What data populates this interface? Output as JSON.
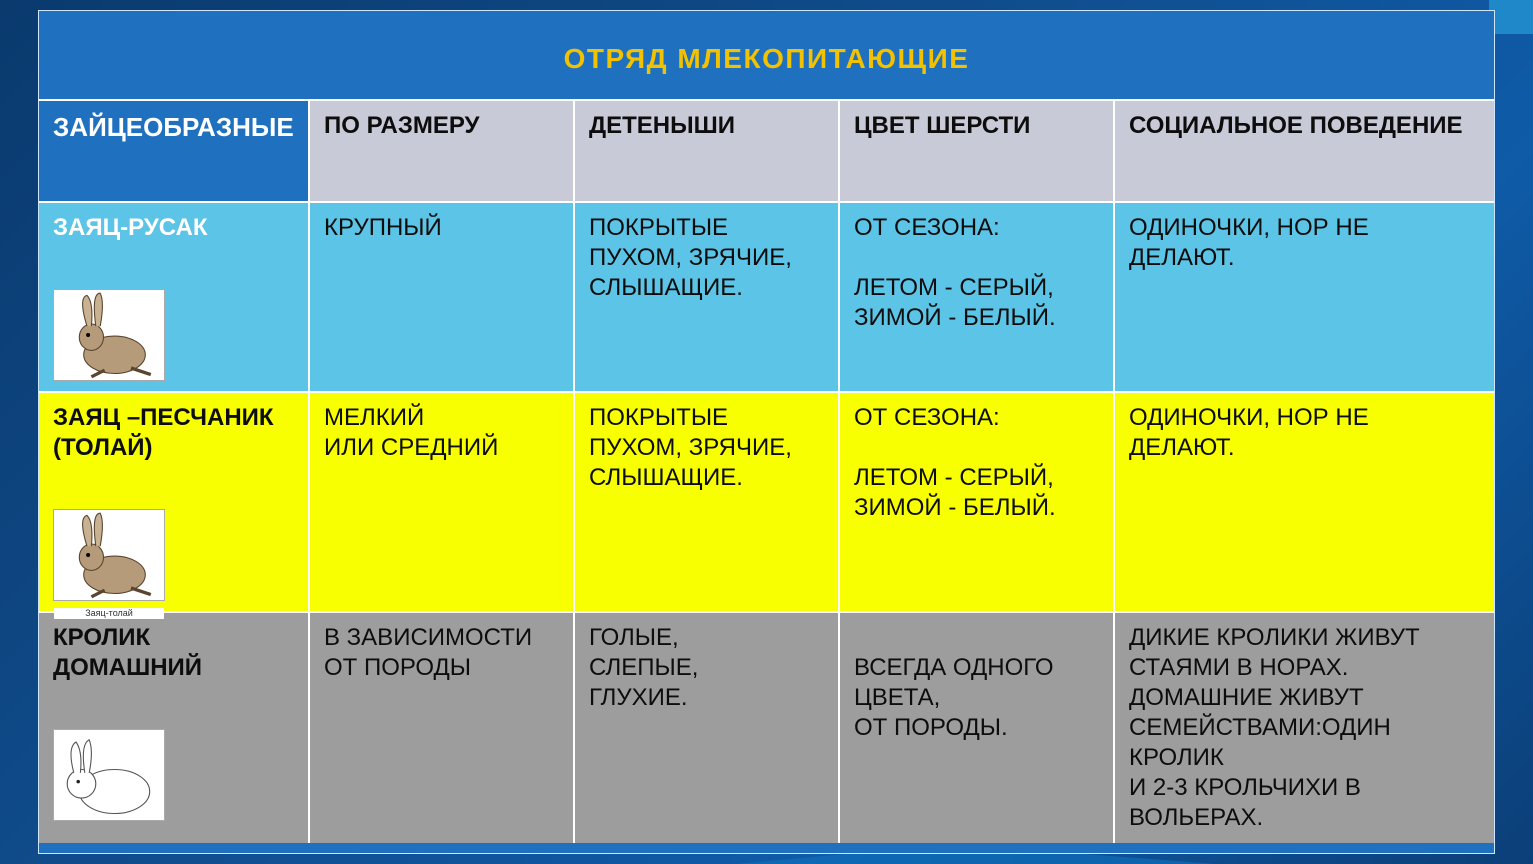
{
  "title": "ОТРЯД МЛЕКОПИТАЮЩИЕ",
  "colors": {
    "page_bg_from": "#0a3a6e",
    "page_bg_to": "#0b3f78",
    "card_bg": "#2070c0",
    "title_color": "#f2c200",
    "grid_line": "#ffffff",
    "header_bg": "#c8cad7",
    "header_first_bg": "#2070c0",
    "row1_bg": "#5cc4e6",
    "row2_bg": "#f8ff00",
    "row3_bg": "#9d9d9d",
    "row_first_text_light": "#ffffff",
    "row_text_dark": "#0d0d0d"
  },
  "fontsizes": {
    "title": 28,
    "header": 24,
    "cell": 24,
    "header_first": 26
  },
  "table": {
    "header_first": "ЗАЙЦЕОБРАЗНЫЕ",
    "columns": [
      "ПО РАЗМЕРУ",
      "ДЕТЕНЫШИ",
      "ЦВЕТ ШЕРСТИ",
      "СОЦИАЛЬНОЕ ПОВЕДЕНИЕ"
    ],
    "rows": [
      {
        "name": "ЗАЯЦ-РУСАК",
        "image": "hare-rusak",
        "bg": "#5cc4e6",
        "name_text_color": "#ffffff",
        "cells": [
          "КРУПНЫЙ",
          "ПОКРЫТЫЕ\n ПУХОМ, ЗРЯЧИЕ,\nСЛЫШАЩИЕ.",
          "ОТ СЕЗОНА:\n\nЛЕТОМ - СЕРЫЙ,\nЗИМОЙ - БЕЛЫЙ.",
          "ОДИНОЧКИ, НОР НЕ\nДЕЛАЮТ."
        ]
      },
      {
        "name": "ЗАЯЦ –ПЕСЧАНИК\n(ТОЛАЙ)",
        "image": "hare-tolai",
        "image_caption": "Заяц-толай",
        "bg": "#f8ff00",
        "name_text_color": "#0d0d0d",
        "cells": [
          "МЕЛКИЙ\nИЛИ СРЕДНИЙ",
          "ПОКРЫТЫЕ\nПУХОМ, ЗРЯЧИЕ,\nСЛЫШАЩИЕ.",
          "ОТ СЕЗОНА:\n\nЛЕТОМ - СЕРЫЙ,\nЗИМОЙ - БЕЛЫЙ.",
          "ОДИНОЧКИ, НОР НЕ\nДЕЛАЮТ."
        ]
      },
      {
        "name": "КРОЛИК\nДОМАШНИЙ",
        "image": "rabbit",
        "bg": "#9d9d9d",
        "name_text_color": "#0d0d0d",
        "cells": [
          "В ЗАВИСИМОСТИ\nОТ ПОРОДЫ",
          "ГОЛЫЕ,\nСЛЕПЫЕ,\nГЛУХИЕ.",
          "\nВСЕГДА ОДНОГО\nЦВЕТА,\nОТ ПОРОДЫ.",
          "ДИКИЕ КРОЛИКИ ЖИВУТ\nСТАЯМИ В НОРАХ.\nДОМАШНИЕ ЖИВУТ\nСЕМЕЙСТВАМИ:ОДИН\nКРОЛИК\nИ 2-3 КРОЛЬЧИХИ В\nВОЛЬЕРАХ."
        ]
      }
    ]
  }
}
